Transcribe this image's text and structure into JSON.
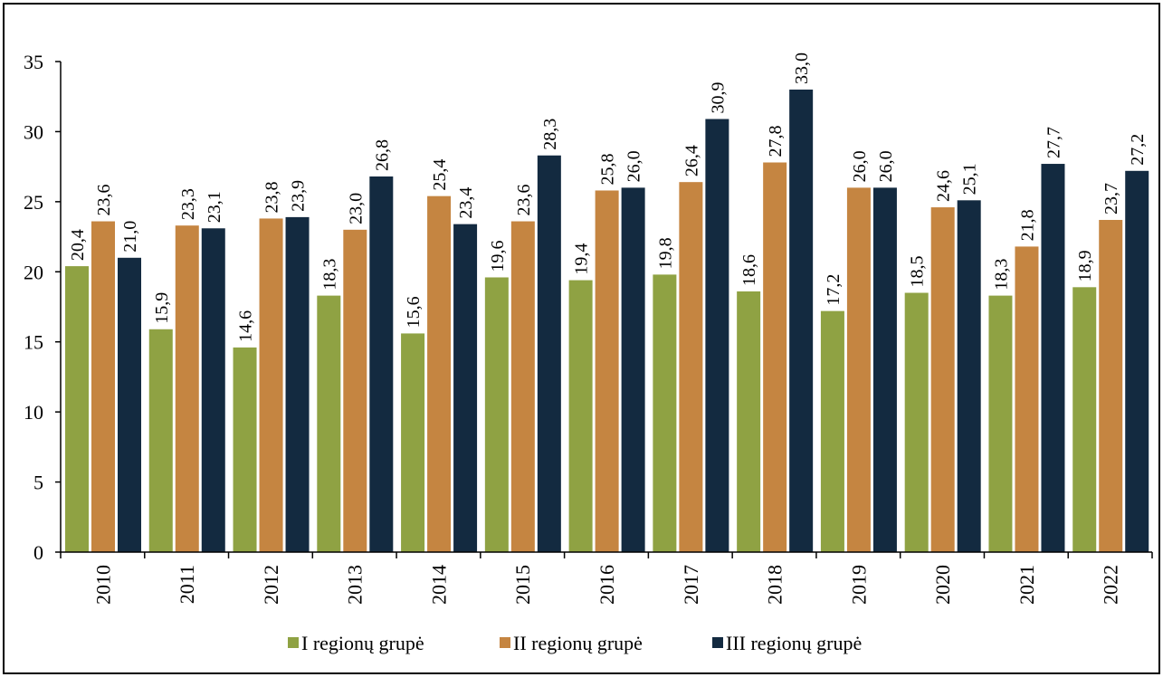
{
  "chart_data": {
    "type": "bar",
    "categories": [
      "2010",
      "2011",
      "2012",
      "2013",
      "2014",
      "2015",
      "2016",
      "2017",
      "2018",
      "2019",
      "2020",
      "2021",
      "2022"
    ],
    "series": [
      {
        "name": "I regionų grupė",
        "color": "#8fa243",
        "values": [
          20.4,
          15.9,
          14.6,
          18.3,
          15.6,
          19.6,
          19.4,
          19.8,
          18.6,
          17.2,
          18.5,
          18.3,
          18.9
        ],
        "labels": [
          "20,4",
          "15,9",
          "14,6",
          "18,3",
          "15,6",
          "19,6",
          "19,4",
          "19,8",
          "18,6",
          "17,2",
          "18,5",
          "18,3",
          "18,9"
        ]
      },
      {
        "name": "II regionų grupė",
        "color": "#c58541",
        "values": [
          23.6,
          23.3,
          23.8,
          23.0,
          25.4,
          23.6,
          25.8,
          26.4,
          27.8,
          26.0,
          24.6,
          21.8,
          23.7
        ],
        "labels": [
          "23,6",
          "23,3",
          "23,8",
          "23,0",
          "25,4",
          "23,6",
          "25,8",
          "26,4",
          "27,8",
          "26,0",
          "24,6",
          "21,8",
          "23,7"
        ]
      },
      {
        "name": "III regionų grupė",
        "color": "#132a40",
        "values": [
          21.0,
          23.1,
          23.9,
          26.8,
          23.4,
          28.3,
          26.0,
          30.9,
          33.0,
          26.0,
          25.1,
          27.7,
          27.2
        ],
        "labels": [
          "21,0",
          "23,1",
          "23,9",
          "26,8",
          "23,4",
          "28,3",
          "26,0",
          "30,9",
          "33,0",
          "26,0",
          "25,1",
          "27,7",
          "27,2"
        ]
      }
    ],
    "y_ticks": [
      0,
      5,
      10,
      15,
      20,
      25,
      30,
      35
    ],
    "ylim": [
      0,
      35
    ],
    "title": "",
    "xlabel": "",
    "ylabel": "",
    "grid": false,
    "legend_position": "bottom"
  }
}
